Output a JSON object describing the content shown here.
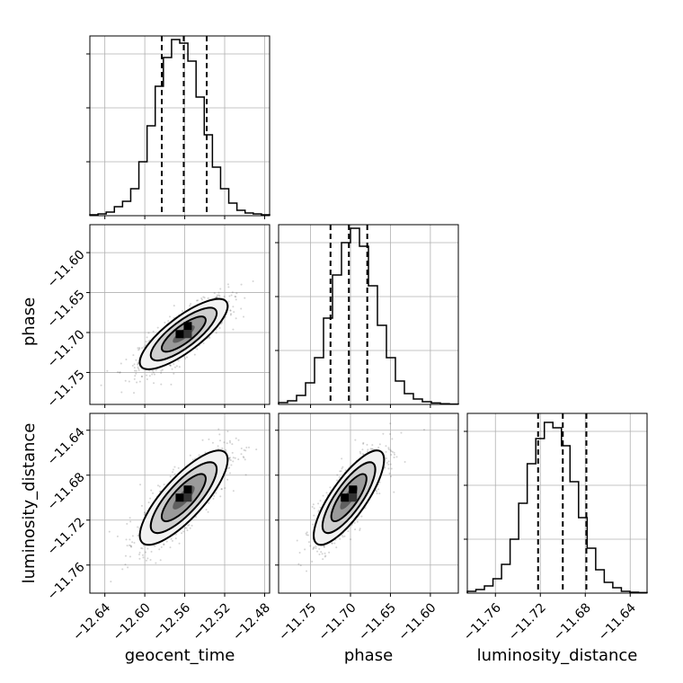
{
  "chart_data": {
    "type": "corner",
    "parameters": [
      "geocent_time",
      "phase",
      "luminosity_distance"
    ],
    "grid": true,
    "axes": {
      "geocent_time": {
        "label": "geocent_time",
        "range": [
          -12.655,
          -12.475
        ],
        "ticks": [
          -12.64,
          -12.6,
          -12.56,
          -12.52,
          -12.48
        ],
        "tick_labels": [
          "−12.64",
          "−12.60",
          "−12.56",
          "−12.52",
          "−12.48"
        ]
      },
      "phase": {
        "label": "phase",
        "range": [
          -11.79,
          -11.565
        ],
        "ticks": [
          -11.75,
          -11.7,
          -11.65,
          -11.6
        ],
        "tick_labels": [
          "−11.75",
          "−11.70",
          "−11.65",
          "−11.60"
        ]
      },
      "luminosity_distance": {
        "label": "luminosity_distance",
        "range": [
          -11.785,
          -11.625
        ],
        "ticks": [
          -11.76,
          -11.72,
          -11.68,
          -11.64
        ],
        "tick_labels": [
          "−11.76",
          "−11.72",
          "−11.68",
          "−11.64"
        ]
      }
    },
    "histograms": {
      "geocent_time": {
        "quantiles": [
          -12.583,
          -12.561,
          -12.538
        ],
        "counts": [
          0.005,
          0.01,
          0.02,
          0.05,
          0.08,
          0.15,
          0.3,
          0.5,
          0.72,
          0.88,
          0.98,
          0.96,
          0.86,
          0.66,
          0.45,
          0.27,
          0.15,
          0.07,
          0.03,
          0.015,
          0.01,
          0.005
        ]
      },
      "phase": {
        "quantiles": [
          -11.725,
          -11.702,
          -11.679
        ],
        "counts": [
          0.01,
          0.02,
          0.05,
          0.12,
          0.26,
          0.48,
          0.72,
          0.9,
          0.98,
          0.88,
          0.66,
          0.44,
          0.26,
          0.13,
          0.06,
          0.03,
          0.015,
          0.008,
          0.004,
          0.002
        ]
      },
      "luminosity_distance": {
        "quantiles": [
          -11.722,
          -11.7,
          -11.679
        ],
        "counts": [
          0.01,
          0.02,
          0.04,
          0.08,
          0.16,
          0.3,
          0.5,
          0.72,
          0.86,
          0.95,
          0.92,
          0.82,
          0.62,
          0.42,
          0.25,
          0.13,
          0.06,
          0.03,
          0.01,
          0.005,
          0.003
        ]
      }
    },
    "joint": [
      {
        "x": "geocent_time",
        "y": "phase",
        "mean": [
          -12.561,
          -11.702
        ],
        "std": [
          0.022,
          0.022
        ],
        "corr": 0.8
      },
      {
        "x": "geocent_time",
        "y": "luminosity_distance",
        "mean": [
          -12.561,
          -11.7
        ],
        "std": [
          0.022,
          0.021
        ],
        "corr": 0.8
      },
      {
        "x": "phase",
        "y": "luminosity_distance",
        "mean": [
          -11.702,
          -11.7
        ],
        "std": [
          0.022,
          0.021
        ],
        "corr": 0.8
      }
    ]
  },
  "colors": {
    "line": "#000000",
    "grid": "#b0b0b0",
    "points": "#555555"
  }
}
